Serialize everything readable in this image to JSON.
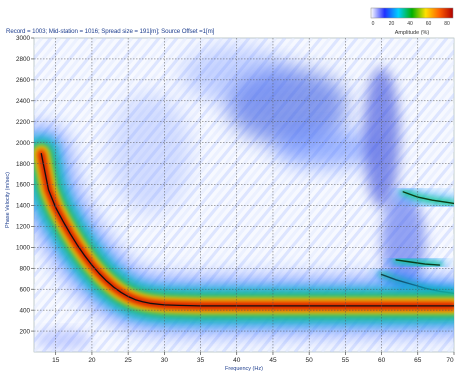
{
  "header_text": "Record = 1003; Mid-station = 1016; Spread size = 191[m]; Source Offset =1[m]",
  "colorbar": {
    "ticks": [
      "0",
      "20",
      "40",
      "60",
      "80"
    ],
    "label": "Amplitude (%)",
    "stops": [
      "#ffffff",
      "#2030ff",
      "#00d0ff",
      "#00b000",
      "#ffe000",
      "#ff6000",
      "#b00000"
    ]
  },
  "chart_data": {
    "type": "heatmap",
    "title": "",
    "xlabel": "Frequency (Hz)",
    "ylabel": "Phase Velocity (m/sec)",
    "xlim": [
      12,
      70
    ],
    "ylim": [
      0,
      3000
    ],
    "xticks": [
      15,
      20,
      25,
      30,
      35,
      40,
      45,
      50,
      55,
      60,
      65,
      70
    ],
    "xtick_labels": [
      "15",
      "20",
      "25",
      "30",
      "35",
      "40",
      "45",
      "50",
      "55",
      "60",
      "65",
      "70"
    ],
    "yticks": [
      200,
      400,
      600,
      800,
      1000,
      1200,
      1400,
      1600,
      1800,
      2000,
      2200,
      2400,
      2600,
      2800,
      3000
    ],
    "ytick_labels": [
      "200",
      "400",
      "600",
      "800",
      "1000",
      "1200",
      "1400",
      "1600",
      "1800",
      "2000",
      "2200",
      "2400",
      "2600",
      "2800",
      "3000"
    ],
    "grid": true,
    "fundamental_mode": {
      "x": [
        13,
        14,
        15,
        16,
        17,
        18,
        19,
        20,
        21,
        22,
        23,
        24,
        25,
        26,
        27,
        28,
        30,
        32,
        35,
        40,
        45,
        50,
        55,
        60,
        65,
        70
      ],
      "y": [
        1900,
        1550,
        1380,
        1250,
        1130,
        1020,
        920,
        830,
        750,
        680,
        620,
        570,
        530,
        500,
        480,
        465,
        450,
        445,
        440,
        440,
        440,
        440,
        440,
        440,
        440,
        440
      ]
    },
    "higher_modes": [
      {
        "x": [
          60,
          62,
          64,
          66,
          68,
          70
        ],
        "y": [
          740,
          690,
          650,
          610,
          580,
          560
        ]
      },
      {
        "x": [
          63,
          65,
          67,
          69,
          70
        ],
        "y": [
          1530,
          1480,
          1450,
          1430,
          1420
        ]
      },
      {
        "x": [
          62,
          64,
          66,
          68
        ],
        "y": [
          880,
          860,
          840,
          830
        ]
      }
    ]
  }
}
